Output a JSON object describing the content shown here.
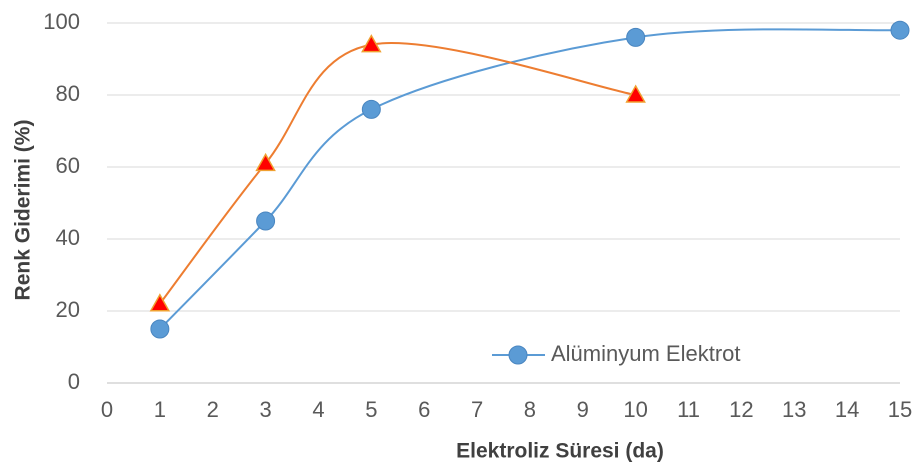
{
  "chart_data": {
    "type": "line",
    "xlabel": "Elektroliz Süresi (da)",
    "ylabel": "Renk Giderimi (%)",
    "series": [
      {
        "name": "Alüminyum Elektrot",
        "color": "#5b9bd5",
        "marker": "circle",
        "marker_fill": "#5b9bd5",
        "marker_stroke": "#4a86c0",
        "x": [
          1,
          3,
          5,
          10,
          15
        ],
        "values": [
          15,
          45,
          76,
          96,
          98
        ]
      },
      {
        "color": "#ed7d31",
        "marker": "triangle",
        "marker_fill": "#ff0000",
        "marker_stroke": "#f0a030",
        "x": [
          1,
          3,
          5,
          10
        ],
        "values": [
          22,
          61,
          94,
          80
        ]
      }
    ],
    "xlim": [
      0,
      15
    ],
    "xticks": [
      0,
      1,
      2,
      3,
      4,
      5,
      6,
      7,
      8,
      9,
      10,
      11,
      12,
      13,
      14,
      15
    ],
    "ylim": [
      0,
      100
    ],
    "yticks": [
      0,
      20,
      40,
      60,
      80,
      100
    ],
    "grid": true,
    "smooth": true,
    "legend": "lower right"
  }
}
